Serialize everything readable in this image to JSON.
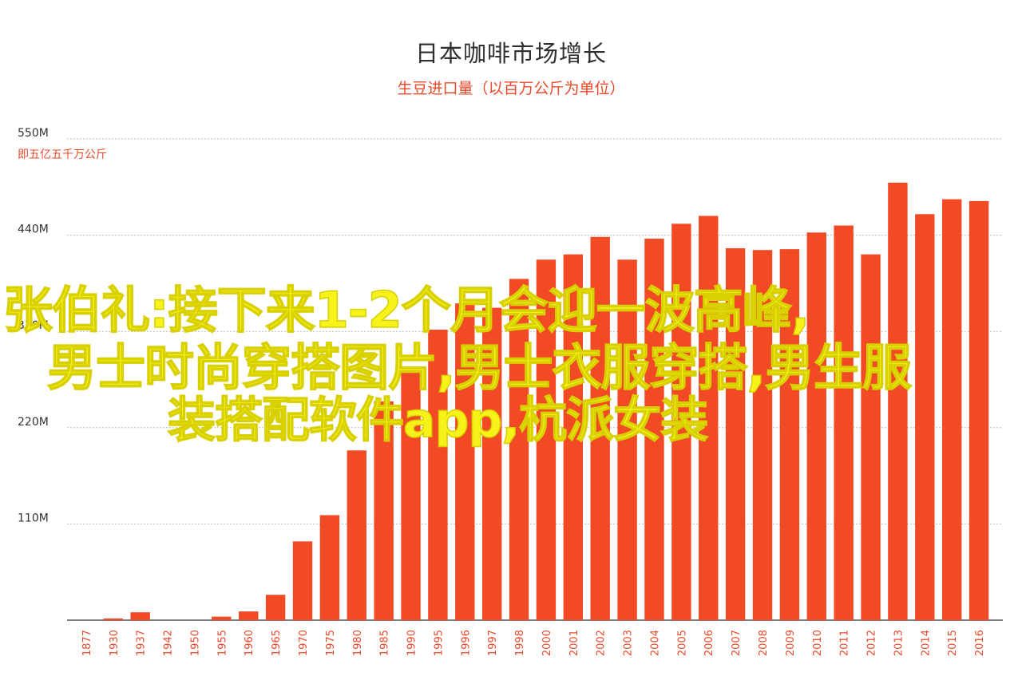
{
  "chart_data": {
    "type": "bar",
    "title": "日本咖啡市场增长",
    "subtitle": "生豆进口量（以百万公斤为单位）",
    "y_unit_note": "即五亿五千万公斤",
    "categories": [
      "1877",
      "1930",
      "1937",
      "1942",
      "1950",
      "1955",
      "1960",
      "1965",
      "1970",
      "1975",
      "1980",
      "1985",
      "1990",
      "1995",
      "1996",
      "1997",
      "1998",
      "2000",
      "2001",
      "2002",
      "2003",
      "2004",
      "2005",
      "2006",
      "2007",
      "2008",
      "2009",
      "2010",
      "2011",
      "2012",
      "2013",
      "2014",
      "2015",
      "2016"
    ],
    "values": [
      0,
      2,
      9,
      0,
      0,
      4,
      10,
      29,
      90,
      120,
      194,
      250,
      290,
      332,
      362,
      357,
      390,
      412,
      418,
      438,
      412,
      436,
      453,
      462,
      425,
      423,
      424,
      443,
      451,
      418,
      500,
      464,
      481,
      479
    ],
    "y_ticks": [
      {
        "value": 110,
        "label": "110M"
      },
      {
        "value": 220,
        "label": "220M"
      },
      {
        "value": 330,
        "label": "330M"
      },
      {
        "value": 440,
        "label": "440M"
      },
      {
        "value": 550,
        "label": "550M"
      }
    ],
    "ylim": [
      0,
      550
    ],
    "grid": true,
    "bar_color": "#f24a25",
    "grid_color": "#bbbbbb",
    "axis_label_color": "#e84a2a"
  },
  "overlay": {
    "line1": "张伯礼:接下来1-2个月会迎一波高峰,",
    "line2": "男士时尚穿搭图片,男士衣服穿搭,男生服",
    "line3": "装搭配软件app,杭派女装",
    "color": "#f7f21a"
  }
}
